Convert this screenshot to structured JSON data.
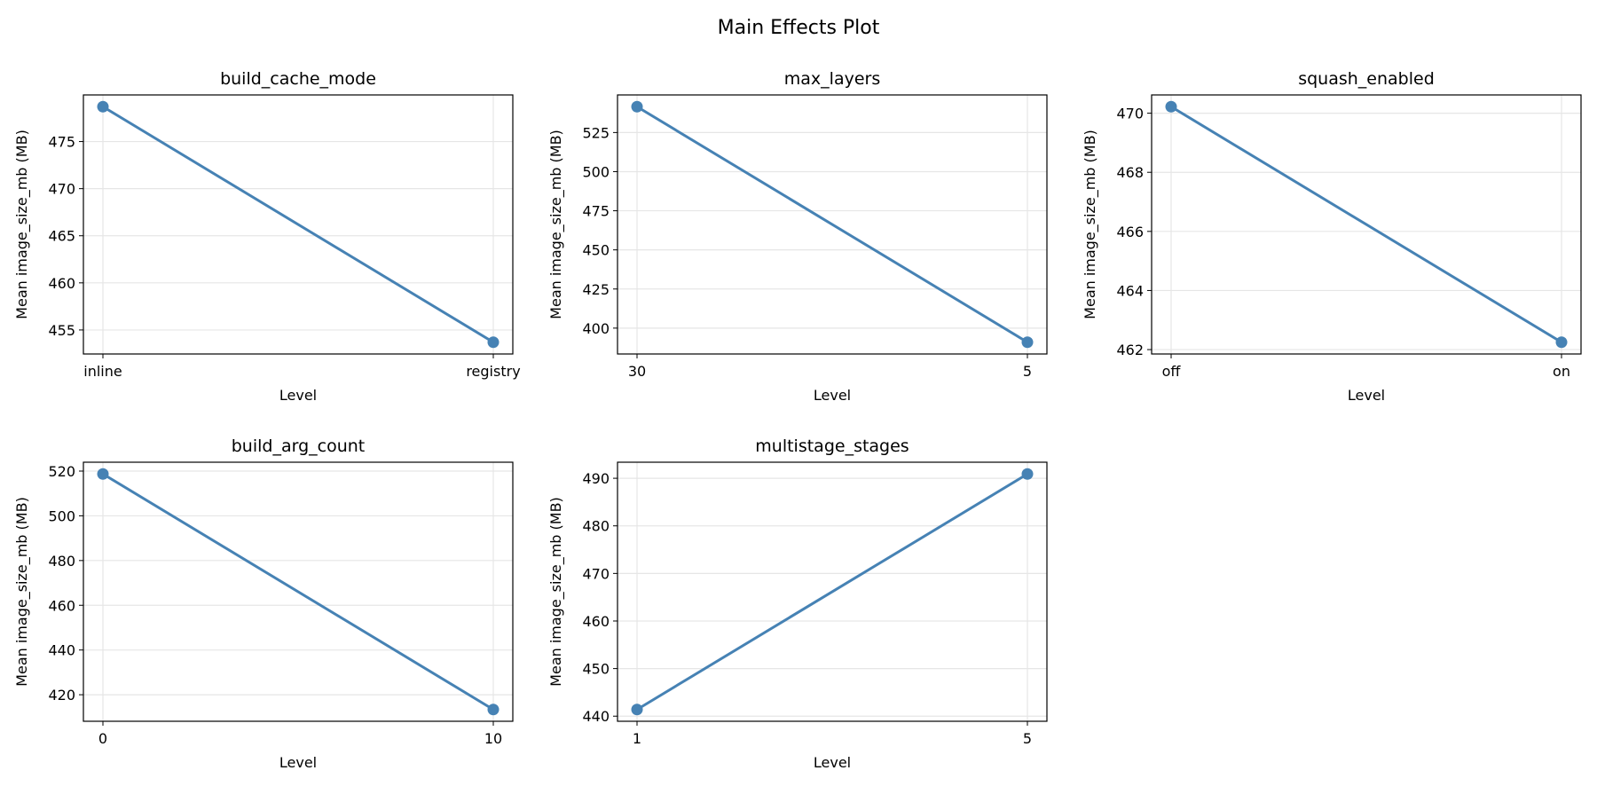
{
  "chart_data": {
    "title": "Main Effects Plot",
    "type": "line",
    "line_color": "#4682b4",
    "grid": true,
    "panels": [
      {
        "title": "build_cache_mode",
        "xlabel": "Level",
        "ylabel": "Mean image_size_mb (MB)",
        "categories": [
          "inline",
          "registry"
        ],
        "values": [
          478.7,
          453.7
        ],
        "yticks": [
          455,
          460,
          465,
          470,
          475,
          480
        ]
      },
      {
        "title": "max_layers",
        "xlabel": "Level",
        "ylabel": "Mean image_size_mb (MB)",
        "categories": [
          "30",
          "5"
        ],
        "values": [
          541.5,
          391.0
        ],
        "yticks": [
          400,
          425,
          450,
          475,
          500,
          525
        ]
      },
      {
        "title": "squash_enabled",
        "xlabel": "Level",
        "ylabel": "Mean image_size_mb (MB)",
        "categories": [
          "off",
          "on"
        ],
        "values": [
          470.22,
          462.25
        ],
        "yticks": [
          462,
          464,
          466,
          468,
          470
        ]
      },
      {
        "title": "build_arg_count",
        "xlabel": "Level",
        "ylabel": "Mean image_size_mb (MB)",
        "categories": [
          "0",
          "10"
        ],
        "values": [
          518.7,
          413.4
        ],
        "yticks": [
          420,
          440,
          460,
          480,
          500,
          520
        ]
      },
      {
        "title": "multistage_stages",
        "xlabel": "Level",
        "ylabel": "Mean image_size_mb (MB)",
        "categories": [
          "1",
          "5"
        ],
        "values": [
          441.4,
          490.9
        ],
        "yticks": [
          440,
          450,
          460,
          470,
          480,
          490
        ]
      }
    ]
  }
}
